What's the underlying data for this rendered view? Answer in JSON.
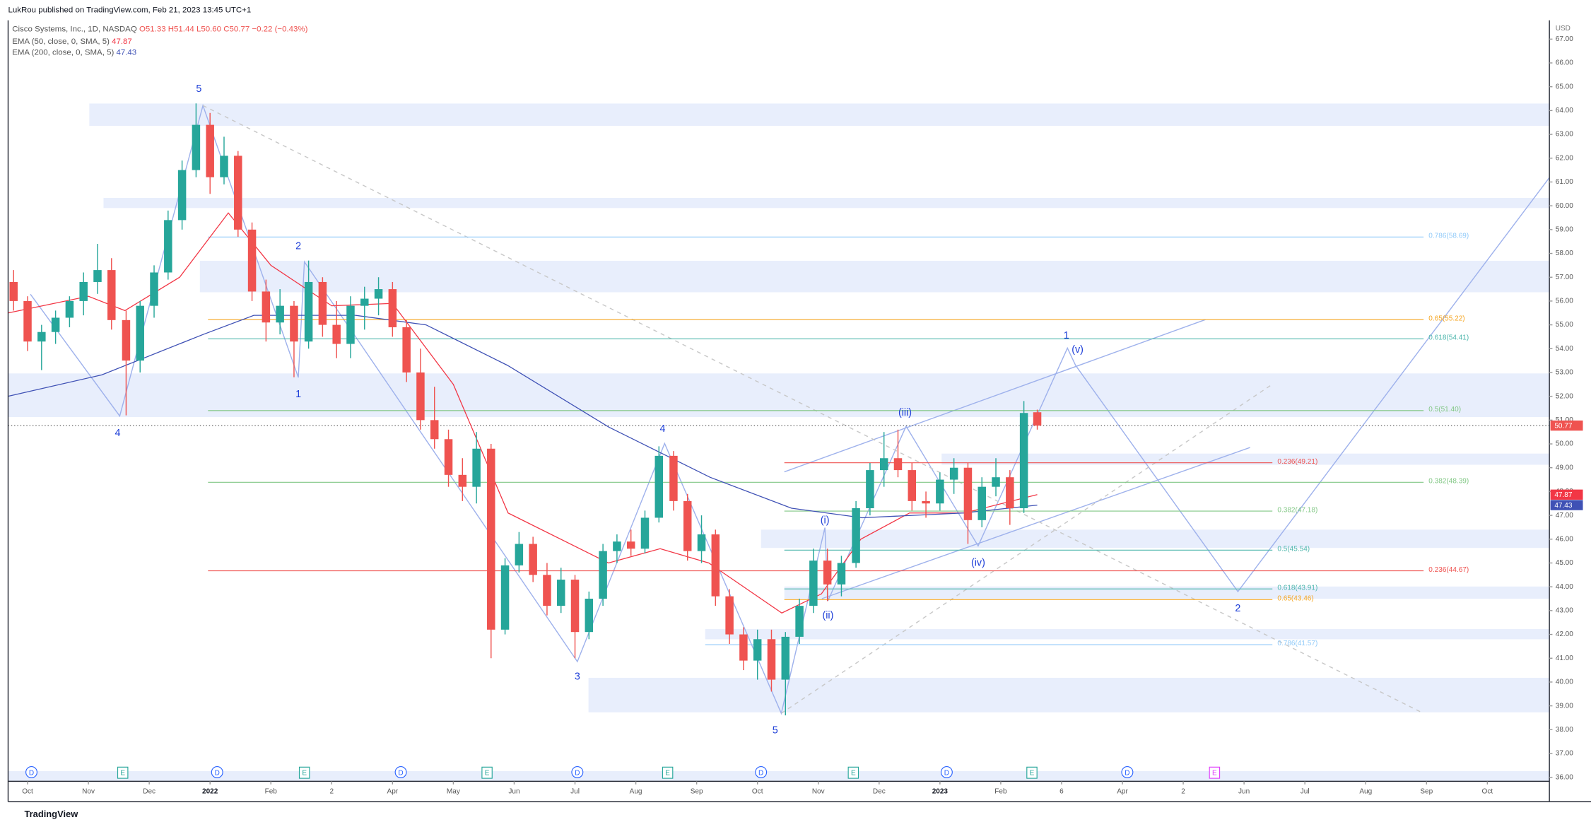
{
  "header": {
    "published": "LukRou published on TradingView.com, Feb 21, 2023 13:45 UTC+1",
    "footer": "TradingView"
  },
  "chart_data": {
    "type": "candlestick",
    "title": "Cisco Systems, Inc., 1D, NASDAQ",
    "ohlc_text": {
      "open": "O51.33",
      "high": "H51.44",
      "low": "L50.60",
      "close": "C50.77",
      "change": "−0.22 (−0.43%)"
    },
    "currency": "USD",
    "up_color": "#26a69a",
    "down_color": "#ef5350",
    "candles": {
      "x": [
        -0.23,
        0,
        0.23,
        0.46,
        0.69,
        0.92,
        1.15,
        1.38,
        1.62,
        1.85,
        2.08,
        2.31,
        2.54,
        2.77,
        3,
        3.23,
        3.46,
        3.69,
        3.92,
        4.15,
        4.38,
        4.62,
        4.85,
        5.08,
        5.31,
        5.54,
        5.77,
        6,
        6.23,
        6.46,
        6.69,
        6.92,
        7.15,
        7.38,
        7.62,
        7.85,
        8.08,
        8.31,
        8.54,
        8.77,
        9,
        9.23,
        9.46,
        9.69,
        9.92,
        10.15,
        10.38,
        10.62,
        10.85,
        11.08,
        11.31,
        11.54,
        11.77,
        12,
        12.23,
        12.46,
        12.69,
        12.92,
        13.15,
        13.38,
        13.62,
        13.85,
        14.08,
        14.31,
        14.54,
        14.77,
        15,
        15.23,
        15.46,
        15.69,
        15.92,
        16.15,
        16.38,
        16.6
      ],
      "open": [
        56.8,
        56,
        54.3,
        54.7,
        55.3,
        56,
        56.8,
        57.3,
        55.2,
        53.5,
        55.8,
        57.2,
        59.4,
        61.5,
        63.4,
        61.2,
        62.1,
        59,
        56.4,
        55.1,
        55.8,
        54.3,
        56.8,
        55,
        54.2,
        55.8,
        56.1,
        56.5,
        54.9,
        53,
        51,
        50.2,
        48.7,
        48.2,
        49.8,
        42.2,
        44.9,
        45.8,
        44.5,
        43.2,
        44.3,
        42.1,
        43.5,
        45.5,
        45.9,
        45.6,
        46.9,
        49.5,
        47.6,
        45.5,
        46.2,
        43.6,
        42,
        40.9,
        41.8,
        40.1,
        41.9,
        43.2,
        45.1,
        44.1,
        45,
        47.3,
        48.9,
        49.4,
        48.9,
        47.6,
        47.5,
        48.5,
        49,
        46.8,
        48.2,
        48.6,
        47.3,
        51.33
      ],
      "high": [
        57.3,
        56.2,
        55,
        55.6,
        56.2,
        57.2,
        58.4,
        57.8,
        55.6,
        56,
        57.5,
        59.8,
        61.9,
        64.3,
        63.9,
        62.9,
        62.3,
        59.3,
        56.9,
        56.5,
        56,
        57.7,
        57,
        56,
        56.2,
        56.6,
        57,
        56.8,
        55.2,
        54,
        52.4,
        50.6,
        49.4,
        50.5,
        50,
        45.2,
        46.3,
        46.1,
        45,
        44.8,
        44.5,
        43.8,
        45.8,
        46.2,
        46.4,
        47.2,
        49.9,
        49.7,
        47.9,
        47,
        46.4,
        43.9,
        42.3,
        42.2,
        42.2,
        42.1,
        43.5,
        45.6,
        45.6,
        45.3,
        47.6,
        49.2,
        50.5,
        50.6,
        49.2,
        48,
        48.8,
        49.4,
        49.2,
        48.6,
        49.4,
        48.9,
        51.8,
        51.44
      ],
      "low": [
        55.6,
        53.9,
        53.1,
        54.2,
        54.9,
        55.4,
        56.3,
        54.8,
        51.2,
        53,
        55.3,
        56.9,
        59,
        61.2,
        60.5,
        60.9,
        58.7,
        56,
        54.3,
        54.6,
        52.8,
        54,
        54.5,
        53.6,
        53.6,
        54.8,
        55.4,
        54.5,
        52.6,
        50.6,
        49.8,
        48.2,
        47.6,
        47.5,
        41,
        42,
        44.6,
        44.2,
        42.8,
        42.9,
        41,
        41.8,
        43.2,
        45,
        45.3,
        45.4,
        46.7,
        47.2,
        45.1,
        45,
        43.2,
        41.6,
        40.5,
        40.1,
        39.6,
        38.6,
        41.6,
        42.9,
        43.4,
        43.6,
        44.8,
        47,
        48.2,
        48.6,
        47.2,
        46.9,
        47.2,
        47.9,
        45.8,
        46.5,
        47.8,
        46.6,
        47.1,
        50.6
      ],
      "close": [
        56,
        54.3,
        54.7,
        55.3,
        56,
        56.8,
        57.3,
        55.2,
        53.5,
        55.8,
        57.2,
        59.4,
        61.5,
        63.4,
        61.2,
        62.1,
        59,
        56.4,
        55.1,
        55.8,
        54.3,
        56.8,
        55,
        54.2,
        55.8,
        56.1,
        56.5,
        54.9,
        53,
        51,
        50.2,
        48.7,
        48.2,
        49.8,
        42.2,
        44.9,
        45.8,
        44.5,
        43.2,
        44.3,
        42.1,
        43.5,
        45.5,
        45.9,
        45.6,
        46.9,
        49.5,
        47.6,
        45.5,
        46.2,
        43.6,
        42,
        40.9,
        41.8,
        40.1,
        41.9,
        43.2,
        45.1,
        44.1,
        45,
        47.3,
        48.9,
        49.4,
        48.9,
        47.6,
        47.5,
        48.5,
        49,
        46.8,
        48.2,
        48.6,
        47.3,
        51.3,
        50.77
      ]
    },
    "series": [
      {
        "name": "EMA (50, close, 0, SMA, 5)",
        "value_label": "47.87",
        "color": "#f23645",
        "x": [
          -0.32,
          1,
          1.6,
          2.5,
          3.3,
          4,
          5,
          6,
          7,
          7.9,
          9.55,
          10.4,
          11.2,
          12.4,
          13.05,
          13.7,
          14.5,
          15.4,
          16.6
        ],
        "values": [
          55.5,
          56.2,
          55.6,
          57,
          59.7,
          57.5,
          55.8,
          55.9,
          52.5,
          47.1,
          45,
          45.6,
          45,
          42.9,
          43.7,
          46,
          47.1,
          47.1,
          47.87
        ]
      },
      {
        "name": "EMA (200, close, 0, SMA, 5)",
        "value_label": "47.43",
        "color": "#3f51b5",
        "x": [
          -0.32,
          1.22,
          2.89,
          3.72,
          5.39,
          6.55,
          7.89,
          9.56,
          11.22,
          12.56,
          13.72,
          15.39,
          16.6
        ],
        "values": [
          52,
          52.9,
          54.6,
          55.4,
          55.4,
          55,
          53.3,
          50.7,
          48.6,
          47.3,
          46.9,
          47.1,
          47.43
        ]
      }
    ],
    "last_price": {
      "value": 50.77,
      "label": "50.77"
    },
    "fibs": [
      {
        "label": "0.786(58.69)",
        "value": 58.69,
        "color": "#90caf9"
      },
      {
        "label": "0.65(55.22)",
        "value": 55.22,
        "color": "#f5a623"
      },
      {
        "label": "0.618(54.41)",
        "value": 54.41,
        "color": "#4db6ac"
      },
      {
        "label": "0.5(51.40)",
        "value": 51.4,
        "color": "#81c784"
      },
      {
        "label": "0.236(49.21)",
        "value": 49.21,
        "color": "#ef5350"
      },
      {
        "label": "0.382(48.39)",
        "value": 48.39,
        "color": "#81c784"
      },
      {
        "label": "0.382(47.18)",
        "value": 47.18,
        "color": "#81c784"
      },
      {
        "label": "0.5(45.54)",
        "value": 45.54,
        "color": "#4db6ac"
      },
      {
        "label": "0.236(44.67)",
        "value": 44.67,
        "color": "#ef5350"
      },
      {
        "label": "0.618(43.91)",
        "value": 43.91,
        "color": "#4db6ac"
      },
      {
        "label": "0.65(43.46)",
        "value": 43.46,
        "color": "#f5a623"
      },
      {
        "label": "0.786(41.57)",
        "value": 41.57,
        "color": "#90caf9"
      }
    ],
    "wave_labels": [
      "5",
      "2",
      "1",
      "4",
      "4",
      "3",
      "5",
      "(i)",
      "(ii)",
      "(iii)",
      "(iv)",
      "(v)",
      "1",
      "2"
    ],
    "events": [
      "D",
      "E",
      "D",
      "E",
      "D",
      "E",
      "D",
      "E",
      "D",
      "E",
      "D",
      "E",
      "D",
      "E"
    ],
    "xlim": [
      -0.32,
      25.02
    ],
    "xticks": [
      {
        "value": 0,
        "label": "Oct"
      },
      {
        "value": 1,
        "label": "Nov"
      },
      {
        "value": 2,
        "label": "Dec"
      },
      {
        "value": 3,
        "label": "2022"
      },
      {
        "value": 4,
        "label": "Feb"
      },
      {
        "value": 5,
        "label": "2"
      },
      {
        "value": 6,
        "label": "Apr"
      },
      {
        "value": 7,
        "label": "May"
      },
      {
        "value": 8,
        "label": "Jun"
      },
      {
        "value": 9,
        "label": "Jul"
      },
      {
        "value": 10,
        "label": "Aug"
      },
      {
        "value": 11,
        "label": "Sep"
      },
      {
        "value": 12,
        "label": "Oct"
      },
      {
        "value": 13,
        "label": "Nov"
      },
      {
        "value": 14,
        "label": "Dec"
      },
      {
        "value": 15,
        "label": "2023"
      },
      {
        "value": 16,
        "label": "Feb"
      },
      {
        "value": 17,
        "label": "6"
      },
      {
        "value": 18,
        "label": "Apr"
      },
      {
        "value": 19,
        "label": "2"
      },
      {
        "value": 20,
        "label": "Jun"
      },
      {
        "value": 21,
        "label": "Jul"
      },
      {
        "value": 22,
        "label": "Aug"
      },
      {
        "value": 23,
        "label": "Sep"
      },
      {
        "value": 24,
        "label": "Oct"
      }
    ],
    "ylim": [
      35.83,
      67.79
    ],
    "yticks": [
      {
        "value": 36,
        "label": "36.00"
      },
      {
        "value": 37,
        "label": "37.00"
      },
      {
        "value": 38,
        "label": "38.00"
      },
      {
        "value": 39,
        "label": "39.00"
      },
      {
        "value": 40,
        "label": "40.00"
      },
      {
        "value": 41,
        "label": "41.00"
      },
      {
        "value": 42,
        "label": "42.00"
      },
      {
        "value": 43,
        "label": "43.00"
      },
      {
        "value": 44,
        "label": "44.00"
      },
      {
        "value": 45,
        "label": "45.00"
      },
      {
        "value": 46,
        "label": "46.00"
      },
      {
        "value": 47,
        "label": "47.00"
      },
      {
        "value": 48,
        "label": "48.00"
      },
      {
        "value": 49,
        "label": "49.00"
      },
      {
        "value": 50,
        "label": "50.00"
      },
      {
        "value": 51,
        "label": "51.00"
      },
      {
        "value": 52,
        "label": "52.00"
      },
      {
        "value": 53,
        "label": "53.00"
      },
      {
        "value": 54,
        "label": "54.00"
      },
      {
        "value": 55,
        "label": "55.00"
      },
      {
        "value": 56,
        "label": "56.00"
      },
      {
        "value": 57,
        "label": "57.00"
      },
      {
        "value": 58,
        "label": "58.00"
      },
      {
        "value": 59,
        "label": "59.00"
      },
      {
        "value": 60,
        "label": "60.00"
      },
      {
        "value": 61,
        "label": "61.00"
      },
      {
        "value": 62,
        "label": "62.00"
      },
      {
        "value": 63,
        "label": "63.00"
      },
      {
        "value": 64,
        "label": "64.00"
      },
      {
        "value": 65,
        "label": "65.00"
      },
      {
        "value": 66,
        "label": "66.00"
      },
      {
        "value": 67,
        "label": "67.00"
      }
    ]
  }
}
